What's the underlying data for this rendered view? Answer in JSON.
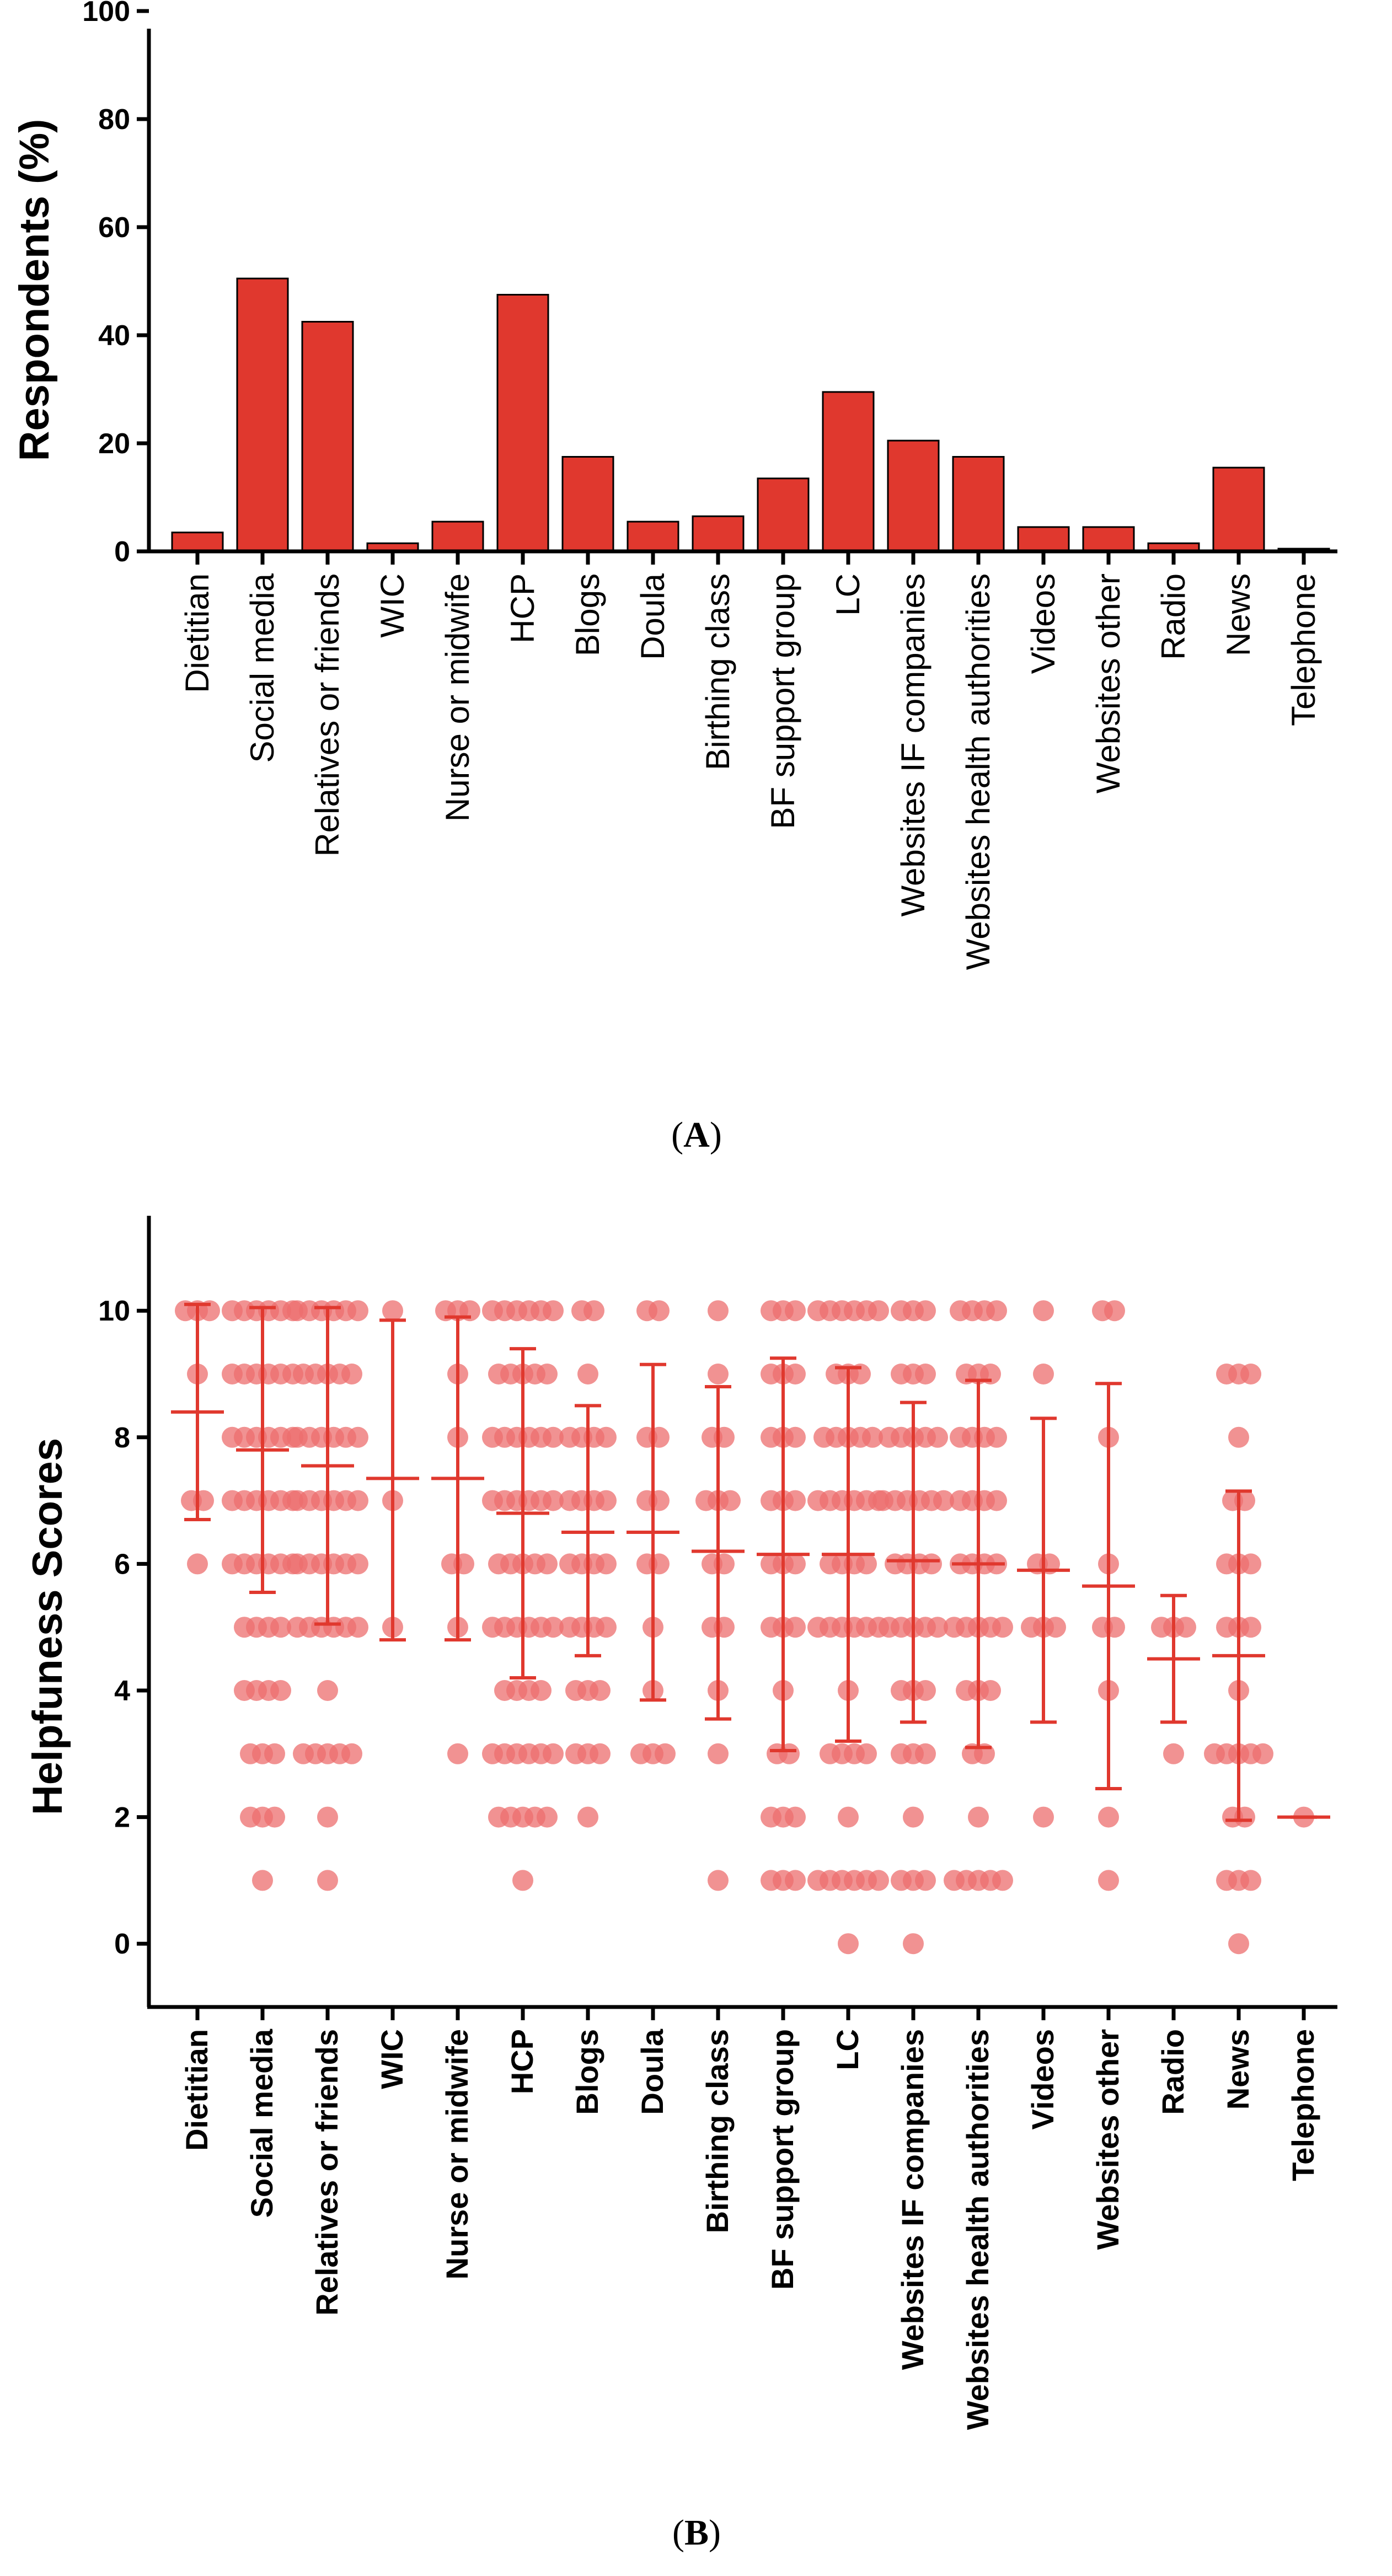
{
  "chart_data": [
    {
      "type": "bar",
      "panel_label": "A",
      "ylabel": "Respondents (%)",
      "xlabel": "",
      "ylim": [
        0,
        100
      ],
      "yticks": [
        0,
        20,
        40,
        60,
        80,
        100
      ],
      "bar_color": "#e0382e",
      "categories": [
        "Dietitian",
        "Social media",
        "Relatives or friends",
        "WIC",
        "Nurse or midwife",
        "HCP",
        "Blogs",
        "Doula",
        "Birthing class",
        "BF support group",
        "LC",
        "Websites IF companies",
        "Websites health authorities",
        "Videos",
        "Websites other",
        "Radio",
        "News",
        "Telephone"
      ],
      "values": [
        3.5,
        50.5,
        42.5,
        1.5,
        5.5,
        47.5,
        17.5,
        5.5,
        6.5,
        13.5,
        29.5,
        20.5,
        17.5,
        4.5,
        4.5,
        1.5,
        15.5,
        0.5
      ]
    },
    {
      "type": "scatter",
      "panel_label": "B",
      "ylabel": "Helpfuness Scores",
      "xlabel": "",
      "ylim": [
        -1,
        11.5
      ],
      "yticks": [
        0,
        2,
        4,
        6,
        8,
        10
      ],
      "point_color": "#ec6e6e",
      "summary_color": "#e0382e",
      "categories": [
        "Dietitian",
        "Social media",
        "Relatives or friends",
        "WIC",
        "Nurse or midwife",
        "HCP",
        "Blogs",
        "Doula",
        "Birthing class",
        "BF support group",
        "LC",
        "Websites IF companies",
        "Websites health authorities",
        "Videos",
        "Websites other",
        "Radio",
        "News",
        "Telephone"
      ],
      "series": [
        {
          "category": "Dietitian",
          "mean": 8.4,
          "sd_low": 6.7,
          "sd_high": 10.1,
          "scores": [
            10,
            10,
            10,
            9,
            7,
            7,
            6
          ]
        },
        {
          "category": "Social media",
          "mean": 7.8,
          "sd_low": 5.55,
          "sd_high": 10.05,
          "scores": [
            10,
            10,
            10,
            10,
            10,
            10,
            9,
            9,
            9,
            9,
            9,
            9,
            8,
            8,
            8,
            8,
            8,
            8,
            7,
            7,
            7,
            7,
            7,
            7,
            6,
            6,
            6,
            6,
            6,
            6,
            5,
            5,
            5,
            5,
            4,
            4,
            4,
            4,
            3,
            3,
            3,
            2,
            2,
            2,
            1
          ]
        },
        {
          "category": "Relatives or friends",
          "mean": 7.55,
          "sd_low": 5.05,
          "sd_high": 10.05,
          "scores": [
            10,
            10,
            10,
            10,
            10,
            10,
            9,
            9,
            9,
            9,
            9,
            8,
            8,
            8,
            8,
            8,
            8,
            7,
            7,
            7,
            7,
            7,
            7,
            6,
            6,
            6,
            6,
            6,
            6,
            5,
            5,
            5,
            5,
            5,
            5,
            4,
            3,
            3,
            3,
            3,
            3,
            2,
            1
          ]
        },
        {
          "category": "WIC",
          "mean": 7.35,
          "sd_low": 4.8,
          "sd_high": 9.85,
          "scores": [
            10,
            7,
            5
          ]
        },
        {
          "category": "Nurse or midwife",
          "mean": 7.35,
          "sd_low": 4.8,
          "sd_high": 9.9,
          "scores": [
            10,
            10,
            10,
            9,
            8,
            6,
            6,
            5,
            3
          ]
        },
        {
          "category": "HCP",
          "mean": 6.8,
          "sd_low": 4.2,
          "sd_high": 9.4,
          "scores": [
            10,
            10,
            10,
            10,
            10,
            10,
            9,
            9,
            9,
            9,
            9,
            8,
            8,
            8,
            8,
            8,
            8,
            7,
            7,
            7,
            7,
            7,
            7,
            6,
            6,
            6,
            6,
            6,
            5,
            5,
            5,
            5,
            5,
            5,
            4,
            4,
            4,
            4,
            3,
            3,
            3,
            3,
            3,
            3,
            2,
            2,
            2,
            2,
            2,
            1
          ]
        },
        {
          "category": "Blogs",
          "mean": 6.5,
          "sd_low": 4.55,
          "sd_high": 8.5,
          "scores": [
            10,
            10,
            9,
            8,
            8,
            8,
            8,
            7,
            7,
            7,
            7,
            6,
            6,
            6,
            6,
            5,
            5,
            5,
            5,
            4,
            4,
            4,
            3,
            3,
            3,
            2
          ]
        },
        {
          "category": "Doula",
          "mean": 6.5,
          "sd_low": 3.85,
          "sd_high": 9.15,
          "scores": [
            10,
            10,
            8,
            8,
            7,
            7,
            6,
            6,
            5,
            4,
            3,
            3,
            3
          ]
        },
        {
          "category": "Birthing class",
          "mean": 6.2,
          "sd_low": 3.55,
          "sd_high": 8.8,
          "scores": [
            10,
            9,
            8,
            8,
            7,
            7,
            7,
            6,
            6,
            5,
            5,
            4,
            3,
            1
          ]
        },
        {
          "category": "BF support group",
          "mean": 6.15,
          "sd_low": 3.05,
          "sd_high": 9.25,
          "scores": [
            10,
            10,
            10,
            9,
            9,
            9,
            8,
            8,
            8,
            7,
            7,
            7,
            6,
            6,
            6,
            5,
            5,
            5,
            4,
            3,
            3,
            2,
            2,
            2,
            1,
            1,
            1
          ]
        },
        {
          "category": "LC",
          "mean": 6.15,
          "sd_low": 3.2,
          "sd_high": 9.1,
          "scores": [
            10,
            10,
            10,
            10,
            10,
            10,
            9,
            9,
            9,
            8,
            8,
            8,
            8,
            8,
            7,
            7,
            7,
            7,
            7,
            7,
            6,
            6,
            6,
            6,
            5,
            5,
            5,
            5,
            5,
            5,
            4,
            3,
            3,
            3,
            3,
            2,
            1,
            1,
            1,
            1,
            1,
            1,
            0
          ]
        },
        {
          "category": "Websites IF companies",
          "mean": 6.05,
          "sd_low": 3.5,
          "sd_high": 8.55,
          "scores": [
            10,
            10,
            10,
            9,
            9,
            9,
            8,
            8,
            8,
            8,
            8,
            7,
            7,
            7,
            7,
            7,
            7,
            6,
            6,
            6,
            6,
            5,
            5,
            5,
            5,
            5,
            4,
            4,
            4,
            3,
            3,
            3,
            2,
            1,
            1,
            1,
            0
          ]
        },
        {
          "category": "Websites health authorities",
          "mean": 6.0,
          "sd_low": 3.1,
          "sd_high": 8.9,
          "scores": [
            10,
            10,
            10,
            10,
            9,
            9,
            9,
            8,
            8,
            8,
            8,
            7,
            7,
            7,
            7,
            6,
            6,
            6,
            6,
            5,
            5,
            5,
            5,
            5,
            4,
            4,
            4,
            3,
            3,
            2,
            1,
            1,
            1,
            1,
            1
          ]
        },
        {
          "category": "Videos",
          "mean": 5.9,
          "sd_low": 3.5,
          "sd_high": 8.3,
          "scores": [
            10,
            9,
            6,
            6,
            5,
            5,
            5,
            2
          ]
        },
        {
          "category": "Websites other",
          "mean": 5.65,
          "sd_low": 2.45,
          "sd_high": 8.85,
          "scores": [
            10,
            10,
            8,
            6,
            5,
            5,
            4,
            2,
            1
          ]
        },
        {
          "category": "Radio",
          "mean": 4.5,
          "sd_low": 3.5,
          "sd_high": 5.5,
          "scores": [
            5,
            5,
            5,
            3
          ]
        },
        {
          "category": "News",
          "mean": 4.55,
          "sd_low": 1.95,
          "sd_high": 7.15,
          "scores": [
            9,
            9,
            9,
            8,
            7,
            7,
            6,
            6,
            6,
            5,
            5,
            5,
            4,
            3,
            3,
            3,
            3,
            3,
            2,
            2,
            1,
            1,
            1,
            0
          ]
        },
        {
          "category": "Telephone",
          "mean": 2.0,
          "sd_low": 2.0,
          "sd_high": 2.0,
          "scores": [
            2
          ]
        }
      ]
    }
  ]
}
